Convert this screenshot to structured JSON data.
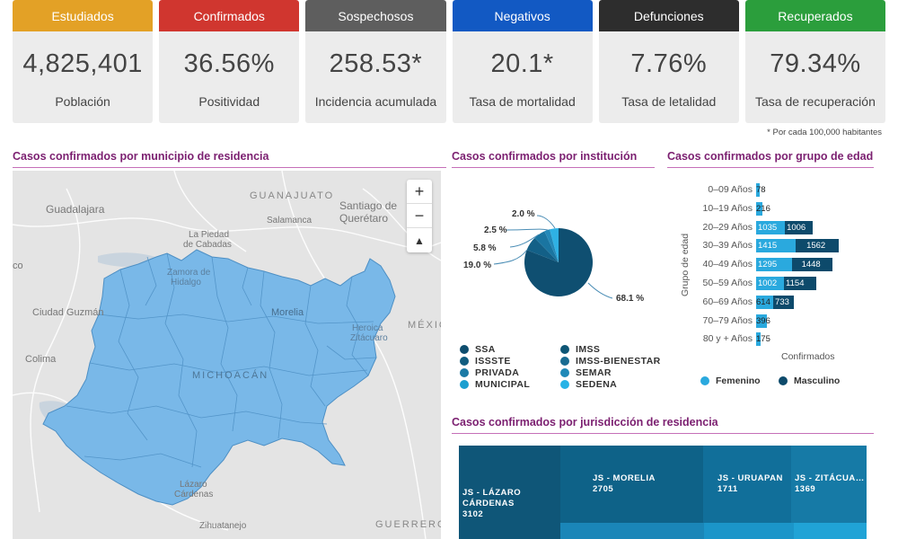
{
  "kpis": [
    {
      "header": "Estudiados",
      "value": "4,825,401",
      "sub": "Población",
      "color": "#e3a126"
    },
    {
      "header": "Confirmados",
      "value": "36.56%",
      "sub": "Positividad",
      "color": "#d0362f"
    },
    {
      "header": "Sospechosos",
      "value": "258.53*",
      "sub": "Incidencia acumulada",
      "color": "#5e5e5e"
    },
    {
      "header": "Negativos",
      "value": "20.1*",
      "sub": "Tasa de mortalidad",
      "color": "#1259c3"
    },
    {
      "header": "Defunciones",
      "value": "7.76%",
      "sub": "Tasa de letalidad",
      "color": "#2d2d2d"
    },
    {
      "header": "Recuperados",
      "value": "79.34%",
      "sub": "Tasa de recuperación",
      "color": "#2b9e3c"
    }
  ],
  "footnote": "* Por cada 100,000 habitantes",
  "map": {
    "title": "Casos confirmados por municipio de residencia",
    "labels": {
      "guanajuato": "GUANAJUATO",
      "guadalajara": "Guadalajara",
      "santiago": "Santiago de",
      "queretaro": "Querétaro",
      "salamanca": "Salamanca",
      "piedad1": "La Piedad",
      "piedad2": "de Cabadas",
      "zamora1": "Zamora de",
      "zamora2": "Hidalgo",
      "co": "co",
      "ciudad_guzman": "Ciudad Guzmán",
      "morelia": "Morelia",
      "mexico": "MÉXICO",
      "heroica1": "Heroica",
      "heroica2": "Zitácuaro",
      "colima": "Colima",
      "michoacan": "MICHOACÁN",
      "lazaro1": "Lázaro",
      "lazaro2": "Cárdenas",
      "zihuatanejo": "Zihuatanejo",
      "guerrero": "GUERRERO"
    },
    "controls": {
      "zoom_in": "+",
      "zoom_out": "−",
      "reset": "▲"
    },
    "fill_color": "#79b8e8"
  },
  "institution": {
    "title": "Casos confirmados por institución",
    "pie_labels": [
      "2.0 %",
      "2.5 %",
      "5.8 %",
      "19.0 %",
      "68.1 %"
    ],
    "legend": [
      {
        "name": "SSA",
        "color": "#0e4d6e"
      },
      {
        "name": "IMSS",
        "color": "#0e5675"
      },
      {
        "name": "ISSSTE",
        "color": "#115d80"
      },
      {
        "name": "IMSS-BIENESTAR",
        "color": "#1a6c92"
      },
      {
        "name": "PRIVADA",
        "color": "#1b7aa5"
      },
      {
        "name": "SEMAR",
        "color": "#2089b8"
      },
      {
        "name": "MUNICIPAL",
        "color": "#1b9fd0"
      },
      {
        "name": "SEDENA",
        "color": "#27b3e6"
      }
    ]
  },
  "age": {
    "title": "Casos confirmados por grupo de edad",
    "y_title": "Grupo de edad",
    "x_title": "Confirmados",
    "legend_fem": "Femenino",
    "legend_masc": "Masculino",
    "color_fem": "#2aa9de",
    "color_masc": "#0d4a6b"
  },
  "chart_data": {
    "type": "bar",
    "categories": [
      "0–09 Años",
      "10–19 Años",
      "20–29 Años",
      "30–39 Años",
      "40–49 Años",
      "50–59 Años",
      "60–69 Años",
      "70–79 Años",
      "80 y + Años"
    ],
    "series": [
      {
        "name": "Femenino",
        "values": [
          78,
          216,
          1035,
          1415,
          1295,
          1002,
          614,
          396,
          175
        ]
      },
      {
        "name": "Masculino",
        "values": [
          78,
          216,
          1006,
          1562,
          1448,
          1154,
          733,
          396,
          175
        ]
      }
    ],
    "bar_labels": [
      [
        "78",
        ""
      ],
      [
        "216",
        ""
      ],
      [
        "1035",
        "1006"
      ],
      [
        "1415",
        "1562"
      ],
      [
        "1295",
        "1448"
      ],
      [
        "1002",
        "1154"
      ],
      [
        "614",
        "733"
      ],
      [
        "396",
        ""
      ],
      [
        "175",
        ""
      ]
    ],
    "xlabel": "Confirmados",
    "ylabel": "Grupo de edad"
  },
  "jurisdiction": {
    "title": "Casos confirmados por jurisdicción de residencia",
    "cells": [
      {
        "name": "JS - LÁZARO CÁRDENAS",
        "value": "3102",
        "color": "#0f5678"
      },
      {
        "name": "JS - MORELIA",
        "value": "2705",
        "color": "#0e6288"
      },
      {
        "name": "JS - URUAPAN",
        "value": "1711",
        "color": "#116f9a"
      },
      {
        "name": "JS - ZITÁCUA…",
        "value": "1369",
        "color": "#167aa6"
      }
    ]
  }
}
